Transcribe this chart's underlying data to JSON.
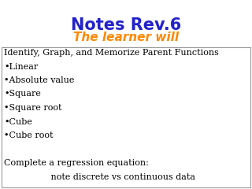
{
  "title": "Notes Rev.6",
  "subtitle": "The learner will",
  "title_color": "#2222cc",
  "subtitle_color": "#ff8800",
  "title_fontsize": 15,
  "subtitle_fontsize": 11,
  "body_fontsize": 8.0,
  "body_color": "#000000",
  "background_color": "#ffffff",
  "box_border_color": "#999999",
  "body_lines": [
    "Identify, Graph, and Memorize Parent Functions",
    "•Linear",
    "•Absolute value",
    "•Square",
    "•Square root",
    "•Cube",
    "•Cube root",
    "",
    "Complete a regression equation:",
    "                 note discrete vs continuous data"
  ]
}
